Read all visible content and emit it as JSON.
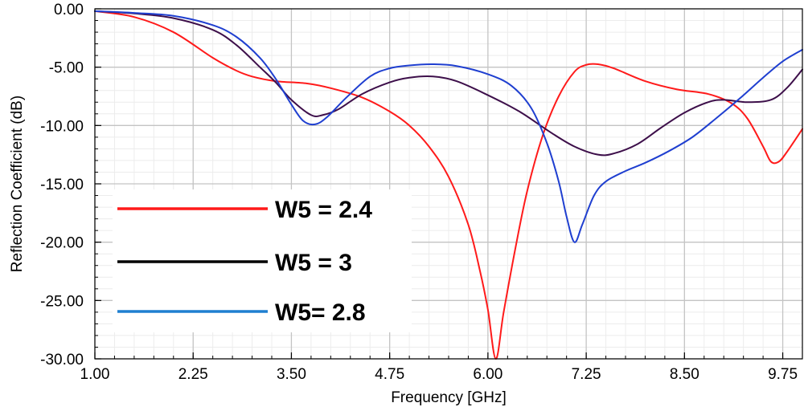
{
  "chart_data": {
    "type": "line",
    "title": "",
    "xlabel": "Frequency [GHz]",
    "ylabel": "Reflection Coefficient (dB)",
    "xlim": [
      1.0,
      10.0
    ],
    "ylim": [
      -30.0,
      0.0
    ],
    "grid": true,
    "legend_position": "left-center",
    "x_ticks": [
      1.0,
      2.25,
      3.5,
      4.75,
      6.0,
      7.25,
      8.5,
      9.75
    ],
    "x_tick_labels": [
      "1.00",
      "2.25",
      "3.50",
      "4.75",
      "6.00",
      "7.25",
      "8.50",
      "9.75"
    ],
    "y_ticks": [
      0.0,
      -5.0,
      -10.0,
      -15.0,
      -20.0,
      -25.0,
      -30.0
    ],
    "y_tick_labels": [
      "0.00",
      "-5.00",
      "-10.00",
      "-15.00",
      "-20.00",
      "-25.00",
      "-30.00"
    ],
    "series": [
      {
        "name": "W5 = 2.4",
        "color": "#ff1a1a",
        "points": [
          [
            1.0,
            -0.2
          ],
          [
            1.5,
            -0.7
          ],
          [
            2.0,
            -2.0
          ],
          [
            2.5,
            -4.2
          ],
          [
            2.8,
            -5.3
          ],
          [
            3.0,
            -5.8
          ],
          [
            3.3,
            -6.2
          ],
          [
            3.7,
            -6.4
          ],
          [
            4.0,
            -6.8
          ],
          [
            4.4,
            -7.6
          ],
          [
            4.75,
            -8.8
          ],
          [
            5.0,
            -10.0
          ],
          [
            5.25,
            -11.8
          ],
          [
            5.5,
            -14.4
          ],
          [
            5.75,
            -18.5
          ],
          [
            5.9,
            -22.5
          ],
          [
            6.0,
            -25.8
          ],
          [
            6.1,
            -30.0
          ],
          [
            6.2,
            -26.0
          ],
          [
            6.35,
            -20.5
          ],
          [
            6.5,
            -15.6
          ],
          [
            6.7,
            -10.8
          ],
          [
            6.9,
            -7.5
          ],
          [
            7.1,
            -5.4
          ],
          [
            7.25,
            -4.8
          ],
          [
            7.4,
            -4.75
          ],
          [
            7.6,
            -5.1
          ],
          [
            8.0,
            -6.2
          ],
          [
            8.4,
            -6.9
          ],
          [
            8.8,
            -7.3
          ],
          [
            9.1,
            -8.1
          ],
          [
            9.3,
            -9.4
          ],
          [
            9.5,
            -11.8
          ],
          [
            9.6,
            -13.1
          ],
          [
            9.7,
            -13.1
          ],
          [
            9.8,
            -12.3
          ],
          [
            10.0,
            -10.3
          ]
        ]
      },
      {
        "name": "W5 = 3",
        "color": "#3d0f4a",
        "points": [
          [
            1.0,
            -0.2
          ],
          [
            1.5,
            -0.4
          ],
          [
            2.0,
            -0.8
          ],
          [
            2.5,
            -1.8
          ],
          [
            2.8,
            -3.1
          ],
          [
            3.1,
            -5.0
          ],
          [
            3.3,
            -6.3
          ],
          [
            3.5,
            -7.8
          ],
          [
            3.75,
            -9.1
          ],
          [
            3.9,
            -9.1
          ],
          [
            4.1,
            -8.6
          ],
          [
            4.4,
            -7.3
          ],
          [
            4.75,
            -6.3
          ],
          [
            5.0,
            -5.9
          ],
          [
            5.3,
            -5.8
          ],
          [
            5.6,
            -6.2
          ],
          [
            6.0,
            -7.4
          ],
          [
            6.4,
            -8.8
          ],
          [
            6.8,
            -10.6
          ],
          [
            7.1,
            -11.8
          ],
          [
            7.4,
            -12.5
          ],
          [
            7.6,
            -12.4
          ],
          [
            7.9,
            -11.6
          ],
          [
            8.2,
            -10.2
          ],
          [
            8.5,
            -8.9
          ],
          [
            8.8,
            -8.0
          ],
          [
            9.0,
            -7.8
          ],
          [
            9.3,
            -8.0
          ],
          [
            9.6,
            -7.8
          ],
          [
            9.8,
            -6.8
          ],
          [
            10.0,
            -5.2
          ]
        ]
      },
      {
        "name": "W5= 2.8",
        "color": "#1f3fd0",
        "points": [
          [
            1.0,
            -0.2
          ],
          [
            1.5,
            -0.35
          ],
          [
            2.0,
            -0.6
          ],
          [
            2.5,
            -1.4
          ],
          [
            2.8,
            -2.4
          ],
          [
            3.1,
            -4.2
          ],
          [
            3.3,
            -6.0
          ],
          [
            3.5,
            -8.2
          ],
          [
            3.65,
            -9.6
          ],
          [
            3.8,
            -9.9
          ],
          [
            3.95,
            -9.3
          ],
          [
            4.2,
            -7.6
          ],
          [
            4.5,
            -5.8
          ],
          [
            4.75,
            -5.1
          ],
          [
            5.0,
            -4.85
          ],
          [
            5.3,
            -4.75
          ],
          [
            5.6,
            -4.9
          ],
          [
            6.0,
            -5.6
          ],
          [
            6.3,
            -6.6
          ],
          [
            6.55,
            -8.5
          ],
          [
            6.75,
            -11.5
          ],
          [
            6.9,
            -14.8
          ],
          [
            7.0,
            -17.8
          ],
          [
            7.1,
            -20.0
          ],
          [
            7.2,
            -18.5
          ],
          [
            7.35,
            -16.0
          ],
          [
            7.5,
            -14.8
          ],
          [
            7.75,
            -13.9
          ],
          [
            8.0,
            -13.2
          ],
          [
            8.3,
            -12.2
          ],
          [
            8.6,
            -11.0
          ],
          [
            8.9,
            -9.4
          ],
          [
            9.2,
            -7.7
          ],
          [
            9.5,
            -5.9
          ],
          [
            9.75,
            -4.5
          ],
          [
            10.0,
            -3.5
          ]
        ]
      }
    ]
  }
}
